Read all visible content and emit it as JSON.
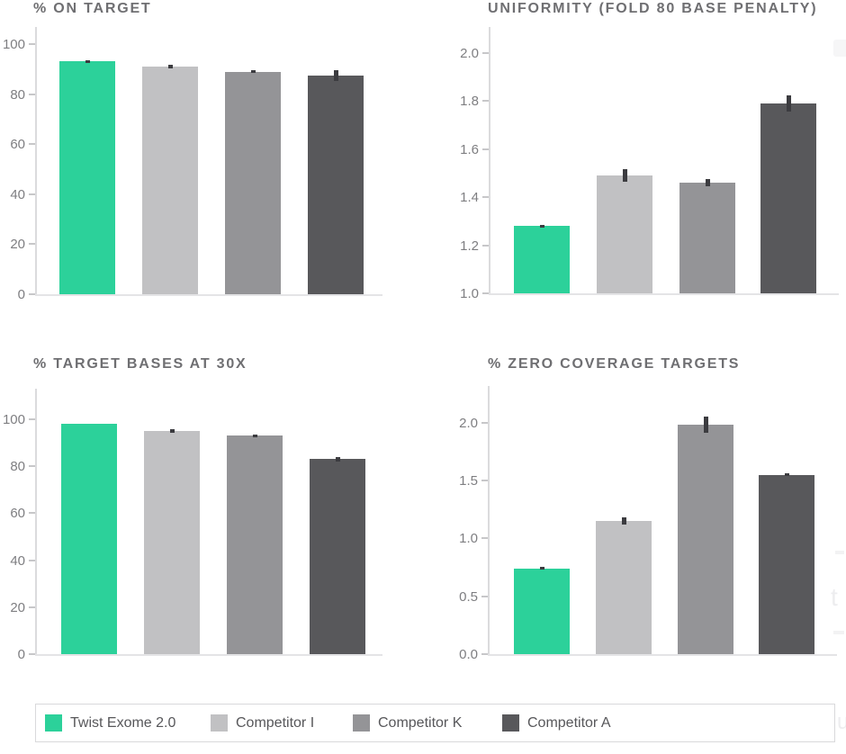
{
  "palette": {
    "series_colors": [
      "#2CD19A",
      "#C1C1C3",
      "#949497",
      "#58585B"
    ],
    "error_bar_color": "#3C3C40",
    "axis_color": "#DBDBDD",
    "title_color": "#6F6F72",
    "tick_label_color": "#7E7E81"
  },
  "chart_data": [
    {
      "id": "on-target",
      "type": "bar",
      "title": "% ON TARGET",
      "categories": [
        "Twist Exome 2.0",
        "Competitor I",
        "Competitor K",
        "Competitor A"
      ],
      "values": [
        93,
        91,
        89,
        87.5
      ],
      "errors": [
        0.4,
        0.6,
        0.6,
        2.2
      ],
      "ylabel": "",
      "ylim": [
        0,
        100
      ],
      "yticks": [
        0,
        20,
        40,
        60,
        80,
        100
      ],
      "ytick_labels": [
        "0",
        "20",
        "40",
        "60",
        "80",
        "100"
      ],
      "grid": false,
      "legend_position": "shared-bottom"
    },
    {
      "id": "uniformity",
      "type": "bar",
      "title": "UNIFORMITY (FOLD 80 BASE PENALTY)",
      "categories": [
        "Twist Exome 2.0",
        "Competitor I",
        "Competitor K",
        "Competitor A"
      ],
      "values": [
        1.28,
        1.49,
        1.46,
        1.79
      ],
      "errors": [
        0.006,
        0.025,
        0.015,
        0.035
      ],
      "ylabel": "",
      "ylim": [
        1.0,
        2.0
      ],
      "yticks": [
        1.0,
        1.2,
        1.4,
        1.6,
        1.8,
        2.0
      ],
      "ytick_labels": [
        "1.0",
        "1.2",
        "1.4",
        "1.6",
        "1.8",
        "2.0"
      ],
      "grid": false,
      "legend_position": "shared-bottom"
    },
    {
      "id": "target-bases-30x",
      "type": "bar",
      "title": "% TARGET BASES AT 30X",
      "categories": [
        "Twist Exome 2.0",
        "Competitor I",
        "Competitor K",
        "Competitor A"
      ],
      "values": [
        98,
        95,
        93,
        83
      ],
      "errors": [
        0,
        0.6,
        0.6,
        1.0
      ],
      "ylabel": "",
      "ylim": [
        0,
        100
      ],
      "yticks": [
        0,
        20,
        40,
        60,
        80,
        100
      ],
      "ytick_labels": [
        "0",
        "20",
        "40",
        "60",
        "80",
        "100"
      ],
      "grid": false,
      "legend_position": "shared-bottom"
    },
    {
      "id": "zero-coverage",
      "type": "bar",
      "title": "% ZERO COVERAGE TARGETS",
      "categories": [
        "Twist Exome 2.0",
        "Competitor I",
        "Competitor K",
        "Competitor A"
      ],
      "values": [
        0.74,
        1.15,
        1.98,
        1.55
      ],
      "errors": [
        0.012,
        0.03,
        0.07,
        0.015
      ],
      "ylabel": "",
      "ylim": [
        0.0,
        2.0
      ],
      "yticks": [
        0.0,
        0.5,
        1.0,
        1.5,
        2.0
      ],
      "ytick_labels": [
        "0.0",
        "0.5",
        "1.0",
        "1.5",
        "2.0"
      ],
      "grid": false,
      "legend_position": "shared-bottom"
    }
  ],
  "legend": {
    "items": [
      {
        "label": "Twist Exome 2.0",
        "color": "#2CD19A"
      },
      {
        "label": "Competitor I",
        "color": "#C1C1C3"
      },
      {
        "label": "Competitor K",
        "color": "#949497"
      },
      {
        "label": "Competitor A",
        "color": "#58585B"
      }
    ]
  }
}
